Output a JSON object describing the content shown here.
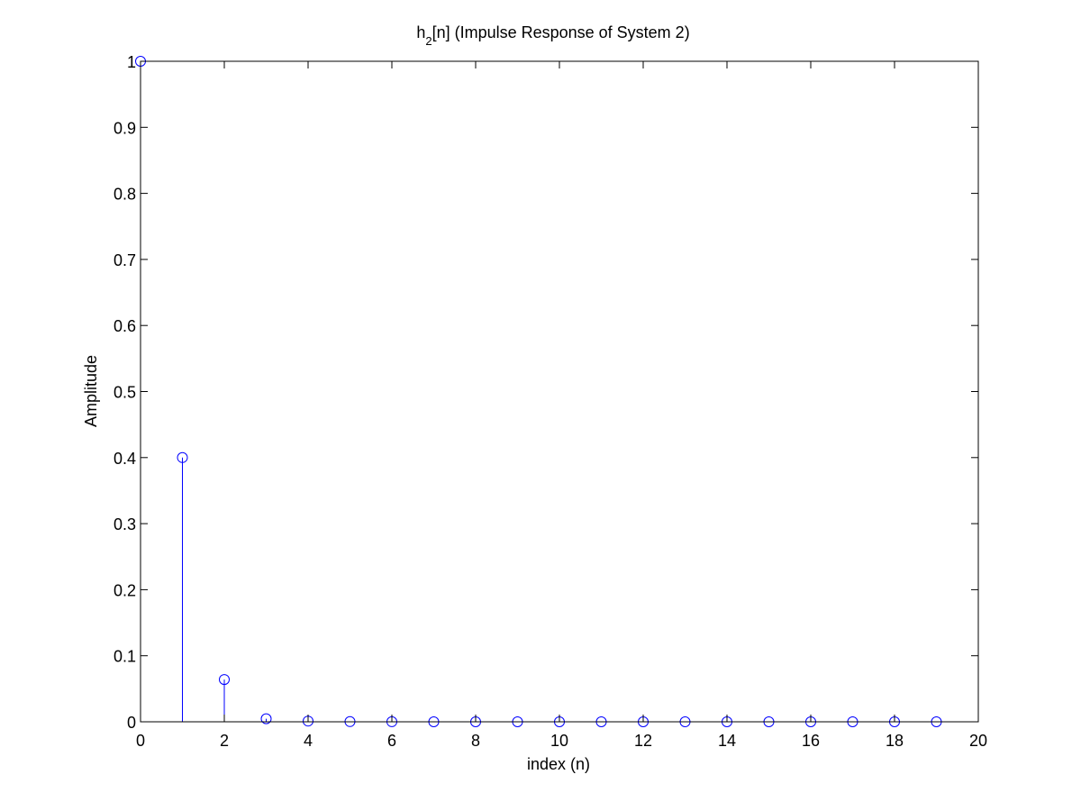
{
  "chart_data": {
    "type": "stem",
    "title_main": "h",
    "title_sub": "2",
    "title_rest": "[n] (Impulse Response of System 2)",
    "xlabel": "index (n)",
    "ylabel": "Amplitude",
    "xlim": [
      0,
      20
    ],
    "ylim": [
      0,
      1
    ],
    "xticks": [
      "0",
      "2",
      "4",
      "6",
      "8",
      "10",
      "12",
      "14",
      "16",
      "18",
      "20"
    ],
    "yticks": [
      "0",
      "0.1",
      "0.2",
      "0.3",
      "0.4",
      "0.5",
      "0.6",
      "0.7",
      "0.8",
      "0.9",
      "1"
    ],
    "grid": false,
    "series": [
      {
        "x": [
          0,
          1,
          2,
          3,
          4,
          5,
          6,
          7,
          8,
          9,
          10,
          11,
          12,
          13,
          14,
          15,
          16,
          17,
          18,
          19
        ],
        "values": [
          1,
          0.4,
          0.064,
          0.0046,
          0.0011,
          0.0003,
          0.0001,
          0,
          0,
          0,
          0,
          0,
          0,
          0,
          0,
          0,
          0,
          0,
          0,
          0
        ],
        "color": "#0000ff"
      }
    ]
  }
}
